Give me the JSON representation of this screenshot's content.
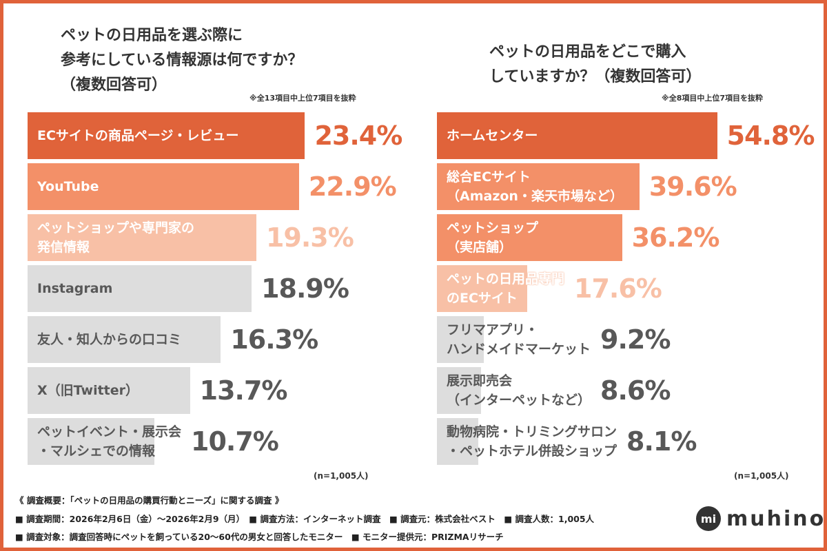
{
  "colors": {
    "dark": "#e0633a",
    "mid": "#f39068",
    "light": "#f8c0a6",
    "gray": "#dddddd",
    "gray_text": "#585858"
  },
  "chart_data": [
    {
      "type": "bar",
      "orientation": "horizontal",
      "title": "ペットの日用品を選ぶ際に\n参考にしている情報源は何ですか？\n（複数回答可）",
      "note": "※全13項目中上位7項目を抜粋",
      "sample": "(n=1,005人)",
      "categories": [
        "ECサイトの商品ページ・レビュー",
        "YouTube",
        "ペットショップや専門家の\n発信情報",
        "Instagram",
        "友人・知人からの口コミ",
        "X（旧Twitter）",
        "ペットイベント・展示会\n・マルシェでの情報"
      ],
      "values": [
        23.4,
        22.9,
        19.3,
        18.9,
        16.3,
        13.7,
        10.7
      ],
      "labels": [
        "23.4%",
        "22.9%",
        "19.3%",
        "18.9%",
        "16.3%",
        "13.7%",
        "10.7%"
      ],
      "tones": [
        "dark",
        "mid",
        "light",
        "gray",
        "gray",
        "gray",
        "gray"
      ]
    },
    {
      "type": "bar",
      "orientation": "horizontal",
      "title": "ペットの日用品をどこで購入\nしていますか？（複数回答可）",
      "note": "※全8項目中上位7項目を抜粋",
      "sample": "(n=1,005人)",
      "categories": [
        "ホームセンター",
        "総合ECサイト\n（Amazon・楽天市場など）",
        "ペットショップ\n（実店舗）",
        "ペットの日用品専門\nのECサイト",
        "フリマアプリ・\nハンドメイドマーケット",
        "展示即売会\n（インターペットなど）",
        "動物病院・トリミングサロン\n・ペットホテル併設ショップ"
      ],
      "values": [
        54.8,
        39.6,
        36.2,
        17.6,
        9.2,
        8.6,
        8.1
      ],
      "labels": [
        "54.8%",
        "39.6%",
        "36.2%",
        "17.6%",
        "9.2%",
        "8.6%",
        "8.1%"
      ],
      "tones": [
        "dark",
        "mid",
        "mid",
        "light",
        "gray",
        "gray",
        "gray"
      ]
    }
  ],
  "footer": {
    "line1": "《 調査概要：「ペットの日用品の購買行動とニーズ」に関する調査 》",
    "line2": "■ 調査期間：2026年2月6日（金）〜2026年2月9（月）　■ 調査方法：インターネット調査　■ 調査元：株式会社ベスト　■ 調査人数：1,005人",
    "line3": "■ 調査対象：調査回答時にペットを飼っている20〜60代の男女と回答したモニター　■ モニター提供元：PRIZMAリサーチ"
  },
  "logo": {
    "text": "MUHINO"
  }
}
